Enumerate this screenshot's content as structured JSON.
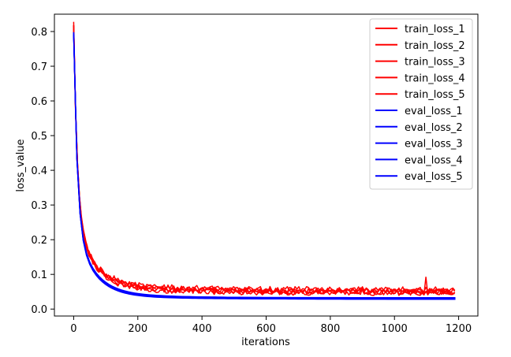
{
  "chart_data": {
    "type": "line",
    "title": "",
    "xlabel": "iterations",
    "ylabel": "loss_value",
    "xlim": [
      -60,
      1260
    ],
    "ylim": [
      -0.02,
      0.85
    ],
    "xticks": [
      0,
      200,
      400,
      600,
      800,
      1000,
      1200
    ],
    "yticks": [
      0.0,
      0.1,
      0.2,
      0.3,
      0.4,
      0.5,
      0.6,
      0.7,
      0.8
    ],
    "xtick_labels": [
      "0",
      "200",
      "400",
      "600",
      "800",
      "1000",
      "1200"
    ],
    "ytick_labels": [
      "0.0",
      "0.1",
      "0.2",
      "0.3",
      "0.4",
      "0.5",
      "0.6",
      "0.7",
      "0.8"
    ],
    "grid": false,
    "legend_position": "top-right",
    "colors": {
      "train": "#ff0000",
      "eval": "#0000ff"
    },
    "x_range": [
      0,
      1190
    ],
    "series": [
      {
        "name": "train_loss_1",
        "group": "train",
        "start": 0.81,
        "floor": 0.048,
        "noise": 0.008
      },
      {
        "name": "train_loss_2",
        "group": "train",
        "start": 0.8,
        "floor": 0.052,
        "noise": 0.008
      },
      {
        "name": "train_loss_3",
        "group": "train",
        "start": 0.8,
        "floor": 0.045,
        "noise": 0.007
      },
      {
        "name": "train_loss_4",
        "group": "train",
        "start": 0.79,
        "floor": 0.05,
        "noise": 0.009
      },
      {
        "name": "train_loss_5",
        "group": "train",
        "start": 0.8,
        "floor": 0.055,
        "noise": 0.008
      },
      {
        "name": "eval_loss_1",
        "group": "eval",
        "start": 0.78,
        "floor": 0.029,
        "noise": 0.0
      },
      {
        "name": "eval_loss_2",
        "group": "eval",
        "start": 0.78,
        "floor": 0.031,
        "noise": 0.0
      },
      {
        "name": "eval_loss_3",
        "group": "eval",
        "start": 0.78,
        "floor": 0.033,
        "noise": 0.0
      },
      {
        "name": "eval_loss_4",
        "group": "eval",
        "start": 0.78,
        "floor": 0.028,
        "noise": 0.0
      },
      {
        "name": "eval_loss_5",
        "group": "eval",
        "start": 0.78,
        "floor": 0.03,
        "noise": 0.0
      }
    ]
  }
}
